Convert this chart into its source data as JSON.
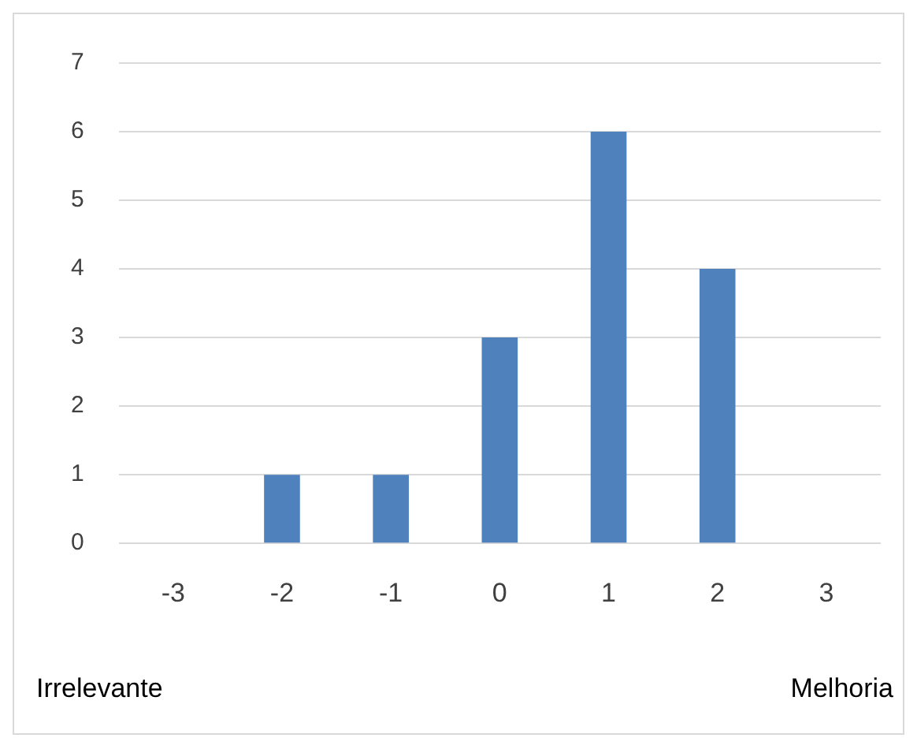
{
  "chart_data": {
    "type": "bar",
    "categories": [
      "-3",
      "-2",
      "-1",
      "0",
      "1",
      "2",
      "3"
    ],
    "values": [
      0,
      1,
      1,
      3,
      6,
      4,
      0
    ],
    "color": "#4f81bd",
    "ylim": [
      0,
      7
    ],
    "yticks": [
      0,
      1,
      2,
      3,
      4,
      5,
      6,
      7
    ],
    "grid": "y",
    "annotations": [
      "Irrelevante",
      "Melhoria"
    ]
  }
}
